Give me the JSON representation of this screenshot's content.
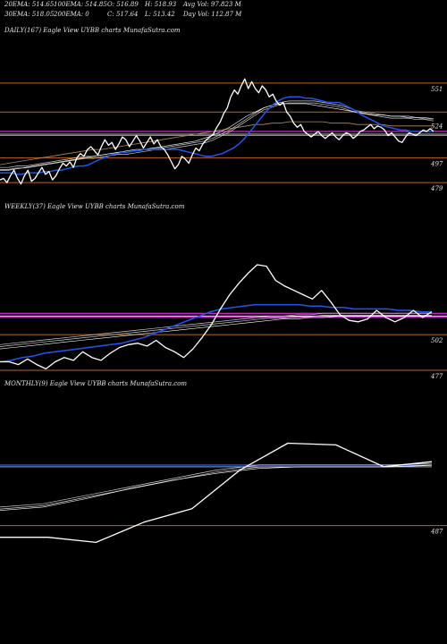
{
  "stats": {
    "ema20": "20EMA: 514.65",
    "ema100": "100EMA: 514.85",
    "open": "O: 516.89",
    "high": "H: 518.93",
    "avg_vol": "Avg Vol: 97.823 M",
    "ema30": "30EMA: 518.05",
    "ema200": "200EMA: 0",
    "close": "C: 517.64",
    "low": "L: 513.42",
    "day_vol": "Day Vol: 112.87 M"
  },
  "colors": {
    "background": "#000000",
    "price": "#ffffff",
    "ema_fast": "#2255ee",
    "ema_slow": "#cccccc",
    "ema_tan": "#b08a5a",
    "support": "#b8651f",
    "magenta": "#ff33ff"
  },
  "chart_data": [
    {
      "type": "line",
      "title": "DAILY(167) Eagle   View  UYBB charts MunafaSutra.com",
      "y_ticks": [
        "551",
        "524",
        "497",
        "479"
      ],
      "levels": [
        {
          "value": 551,
          "kind": "support"
        },
        {
          "value": 530,
          "kind": "support"
        },
        {
          "value": 515,
          "kind": "magenta"
        },
        {
          "value": 497,
          "kind": "support"
        },
        {
          "value": 479,
          "kind": "support"
        }
      ],
      "price": [
        481,
        482,
        479,
        484,
        488,
        482,
        478,
        484,
        488,
        480,
        482,
        486,
        490,
        485,
        487,
        481,
        484,
        489,
        493,
        491,
        494,
        490,
        497,
        500,
        498,
        503,
        505,
        502,
        499,
        505,
        510,
        506,
        508,
        503,
        507,
        512,
        510,
        505,
        509,
        513,
        509,
        504,
        508,
        512,
        507,
        510,
        505,
        503,
        499,
        494,
        489,
        492,
        498,
        496,
        493,
        499,
        504,
        502,
        507,
        510,
        512,
        514,
        519,
        523,
        529,
        533,
        541,
        546,
        543,
        549,
        554,
        547,
        552,
        547,
        544,
        549,
        546,
        541,
        543,
        538,
        535,
        537,
        530,
        527,
        522,
        519,
        521,
        516,
        514,
        512,
        514,
        516,
        513,
        511,
        513,
        515,
        512,
        510,
        513,
        515,
        514,
        511,
        513,
        516,
        517,
        519,
        521,
        518,
        520,
        519,
        517,
        513,
        515,
        512,
        509,
        508,
        512,
        515,
        514,
        513,
        515,
        517,
        516,
        518,
        516
      ],
      "ema_fast": [
        486,
        486,
        486,
        485,
        485,
        486,
        486,
        486,
        487,
        487,
        488,
        488,
        489,
        490,
        491,
        491,
        492,
        494,
        496,
        497,
        499,
        500,
        501,
        501,
        502,
        502,
        503,
        503,
        503,
        503,
        503,
        503,
        503,
        502,
        501,
        500,
        499,
        498,
        498,
        499,
        500,
        502,
        504,
        507,
        511,
        516,
        521,
        526,
        531,
        535,
        538,
        540,
        541,
        541,
        541,
        540,
        540,
        539,
        538,
        537,
        537,
        537,
        535,
        533,
        531,
        528,
        526,
        524,
        522,
        520,
        519,
        518,
        517,
        517,
        516,
        516,
        516,
        516,
        516
      ],
      "ema_slow": [
        490,
        490,
        491,
        491,
        492,
        493,
        494,
        495,
        496,
        497,
        498,
        498,
        499,
        500,
        501,
        501,
        502,
        503,
        504,
        504,
        505,
        506,
        507,
        508,
        509,
        511,
        514,
        517,
        521,
        525,
        529,
        533,
        535,
        537,
        538,
        538,
        538,
        538,
        537,
        536,
        535,
        533,
        531,
        530,
        529,
        528,
        527,
        527,
        527,
        526,
        526,
        525
      ],
      "ema_slow2": [
        488,
        488,
        489,
        490,
        491,
        492,
        493,
        494,
        495,
        496,
        497,
        498,
        499,
        500,
        501,
        502,
        503,
        503,
        504,
        505,
        506,
        507,
        508,
        509,
        511,
        513,
        516,
        519,
        523,
        527,
        530,
        533,
        535,
        536,
        536,
        536,
        536,
        535,
        534,
        533,
        532,
        531,
        530,
        529,
        528,
        528,
        527,
        527,
        526,
        526,
        525,
        525
      ],
      "ema_tan": [
        492,
        493,
        494,
        495,
        496,
        497,
        498,
        499,
        500,
        501,
        502,
        503,
        503,
        504,
        505,
        506,
        507,
        508,
        509,
        510,
        511,
        512,
        513,
        514,
        515,
        516,
        517,
        518,
        519,
        520,
        521,
        521,
        522,
        522,
        523,
        523,
        523,
        523,
        523,
        522,
        522,
        522,
        521,
        521,
        521,
        521,
        520,
        520,
        520,
        520,
        520,
        520
      ]
    },
    {
      "type": "line",
      "title": "WEEKLY(37) Eagle   View  UYBB charts MunafaSutra.com",
      "y_ticks": [
        "502",
        "477"
      ],
      "levels": [
        {
          "value": 516,
          "kind": "magenta"
        },
        {
          "value": 502,
          "kind": "support"
        },
        {
          "value": 477,
          "kind": "support"
        }
      ],
      "price": [
        483,
        483,
        481,
        485,
        481,
        478,
        483,
        486,
        484,
        490,
        486,
        484,
        489,
        493,
        495,
        496,
        494,
        498,
        493,
        490,
        486,
        492,
        500,
        509,
        520,
        530,
        538,
        545,
        551,
        550,
        540,
        536,
        533,
        530,
        527,
        533,
        525,
        516,
        512,
        511,
        513,
        519,
        514,
        511,
        514,
        519,
        514,
        518
      ],
      "ema_fast": [
        483,
        484,
        486,
        487,
        489,
        490,
        491,
        492,
        493,
        494,
        495,
        496,
        498,
        500,
        503,
        506,
        509,
        512,
        515,
        518,
        520,
        521,
        522,
        523,
        523,
        523,
        523,
        523,
        522,
        522,
        521,
        521,
        520,
        520,
        520,
        520,
        519,
        519,
        518,
        518
      ],
      "ema_slow": [
        495,
        496,
        497,
        498,
        499,
        500,
        501,
        502,
        503,
        504,
        505,
        506,
        507,
        508,
        509,
        510,
        511,
        512,
        513,
        514,
        515,
        515,
        516,
        516,
        517,
        517,
        517,
        517,
        517,
        517,
        517,
        517,
        517
      ],
      "ema_slow2": [
        492,
        493,
        494,
        495,
        496,
        497,
        498,
        499,
        500,
        501,
        502,
        503,
        504,
        505,
        506,
        507,
        508,
        509,
        510,
        511,
        512,
        513,
        513,
        514,
        514,
        515,
        515,
        515,
        515,
        515,
        515,
        515,
        515
      ]
    },
    {
      "type": "line",
      "title": "MONTHLY(9) Eagle   View  UYBB charts MunafaSutra.com",
      "y_ticks": [
        "487"
      ],
      "levels": [
        {
          "value": 523,
          "kind": "ema_fast"
        },
        {
          "value": 487,
          "kind": "support"
        }
      ],
      "price": [
        480,
        480,
        477,
        489,
        497,
        520,
        536,
        535,
        522,
        525
      ],
      "ema_slow": [
        498,
        500,
        505,
        510,
        515,
        520,
        523,
        523,
        523,
        523,
        524
      ],
      "ema_slow2": [
        496,
        498,
        503,
        509,
        514,
        518,
        521,
        522,
        522,
        522,
        523
      ]
    }
  ]
}
